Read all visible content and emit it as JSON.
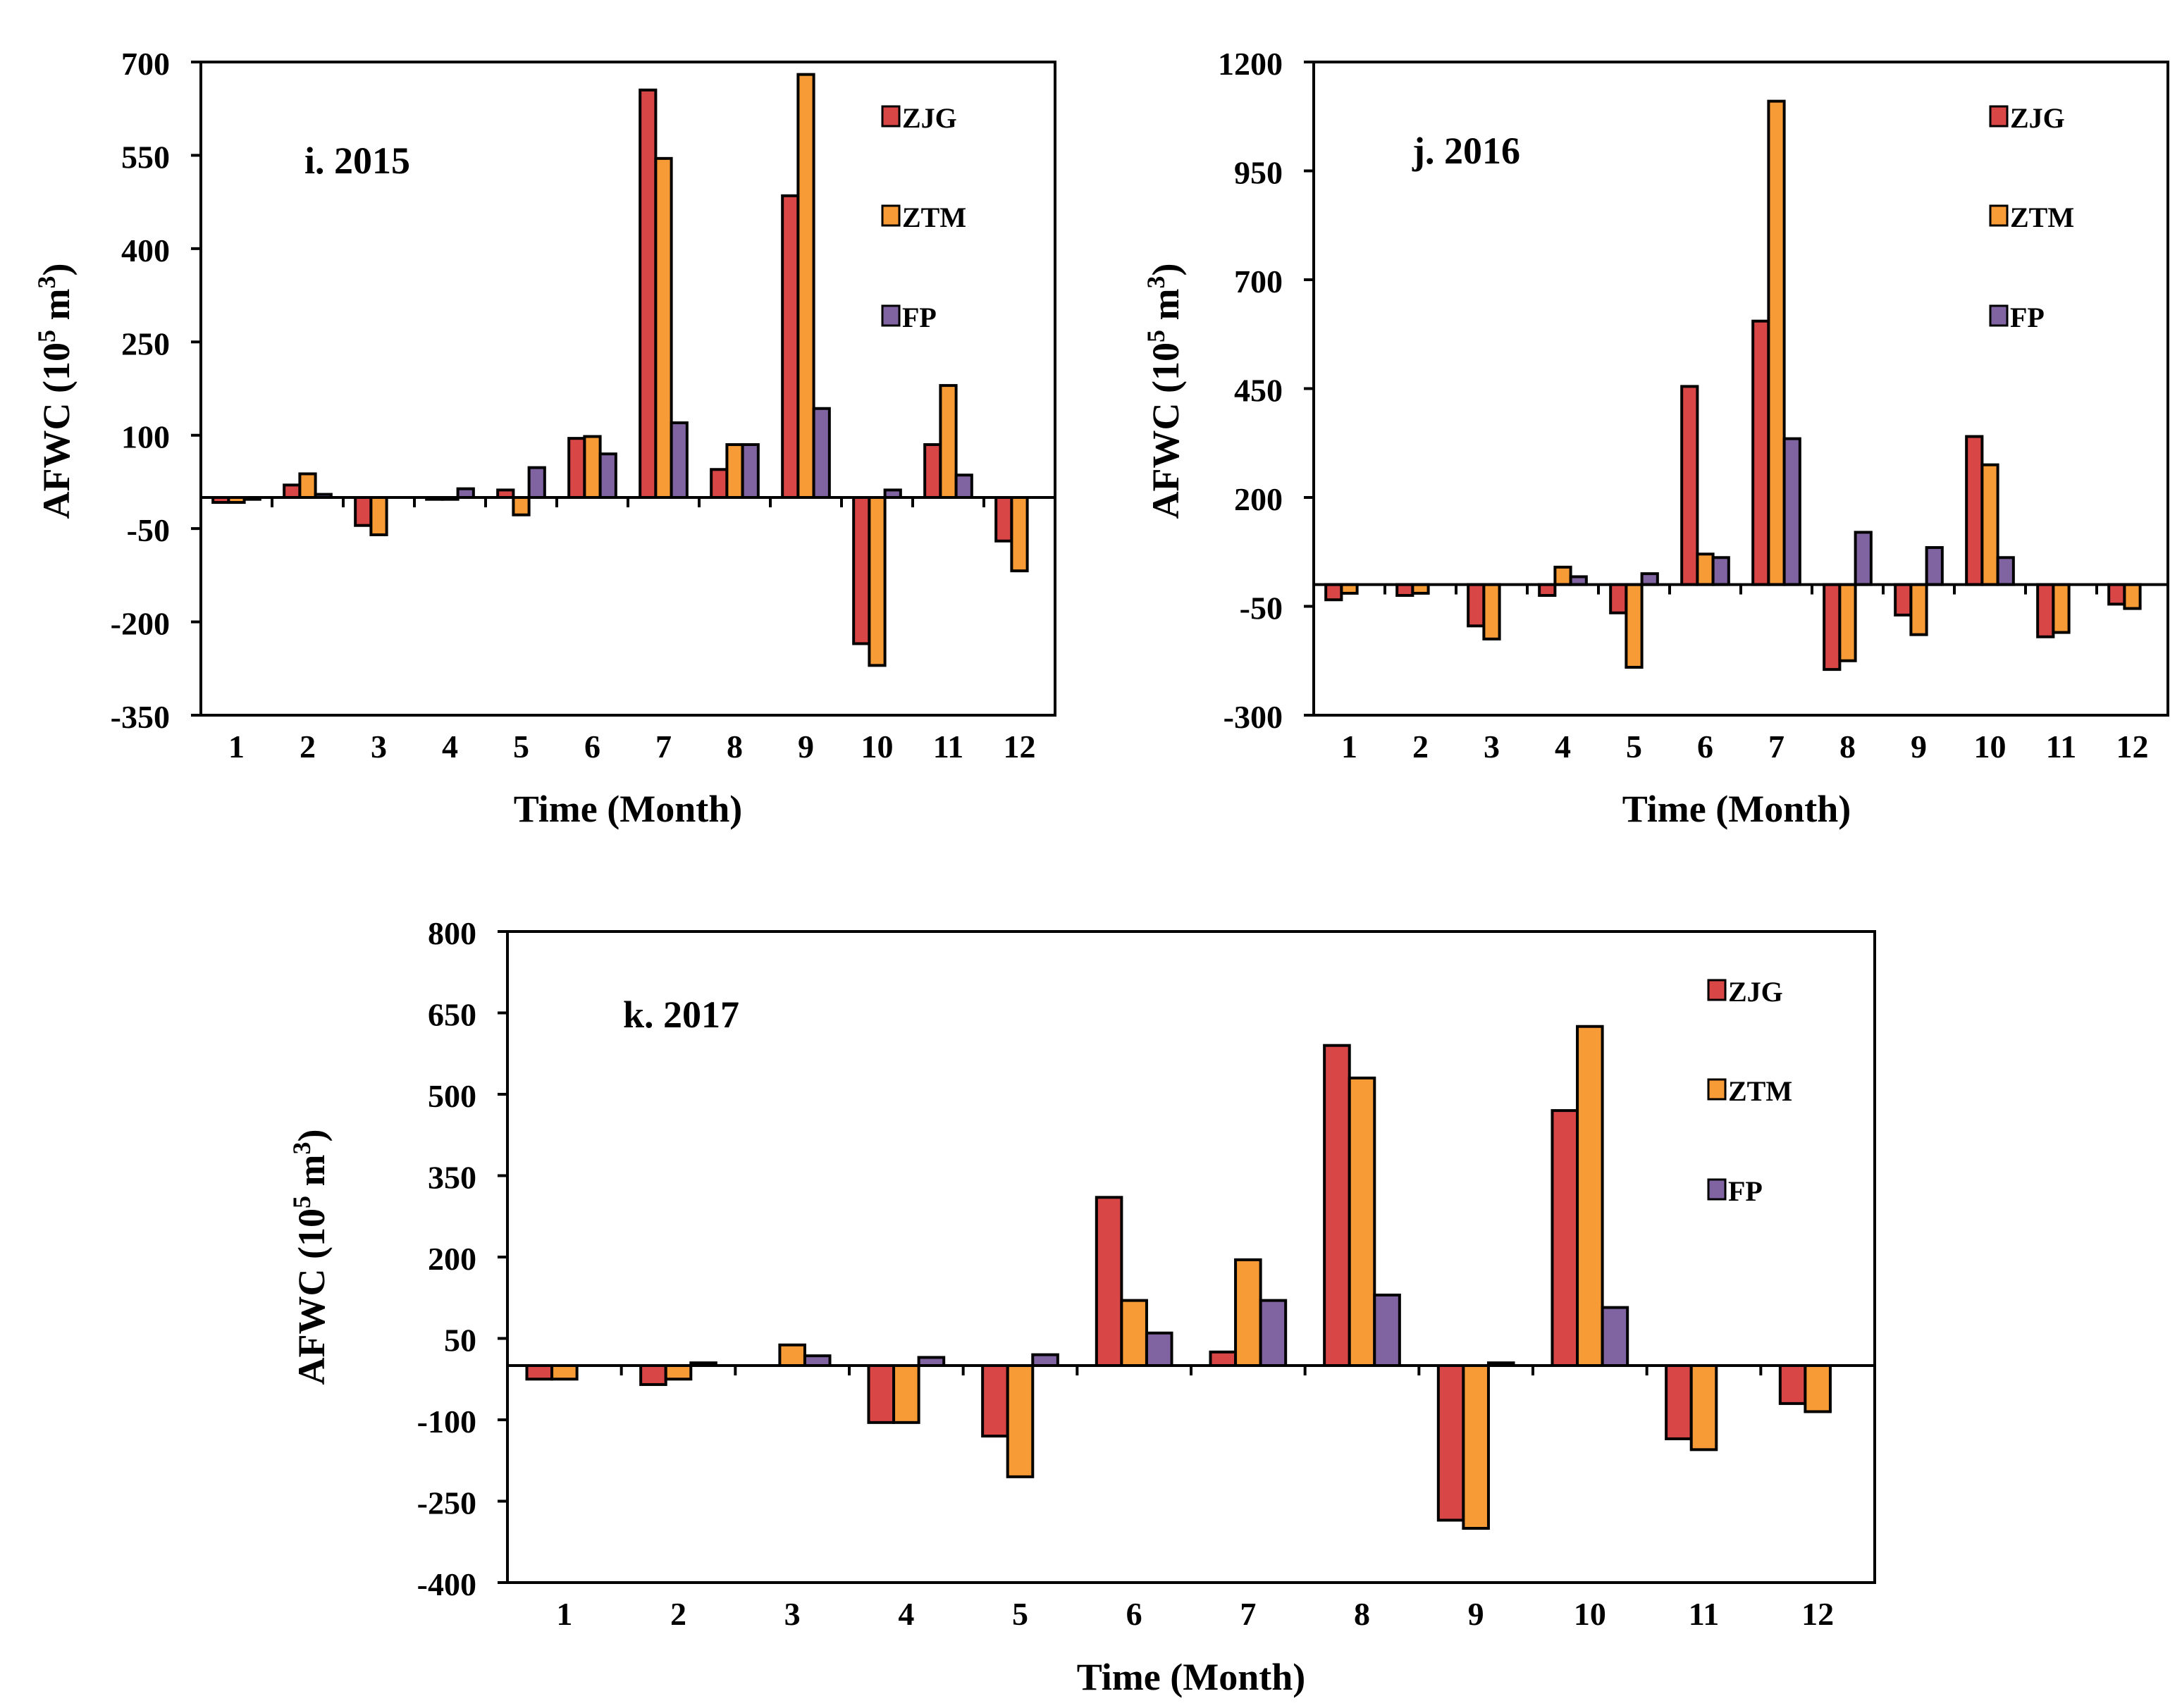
{
  "colors": {
    "ZJG": "#d94646",
    "ZTM": "#f79b36",
    "FP": "#8064a2",
    "axis": "#000000",
    "background": "#ffffff"
  },
  "chart_data": [
    {
      "type": "bar",
      "panel_label": "i. 2015",
      "xlabel": "Time (Month)",
      "ylabel_main": "AFWC (10",
      "ylabel_sup1": "5",
      "ylabel_mid": " m",
      "ylabel_sup2": "3",
      "ylabel_end": ")",
      "ylim": [
        -350,
        700
      ],
      "yticks": [
        "700",
        "550",
        "400",
        "250",
        "100",
        "-50",
        "-200",
        "-350"
      ],
      "ytick_values": [
        700,
        550,
        400,
        250,
        100,
        -50,
        -200,
        -350
      ],
      "categories": [
        "1",
        "2",
        "3",
        "4",
        "5",
        "6",
        "7",
        "8",
        "9",
        "10",
        "11",
        "12"
      ],
      "legend_position": "top-right",
      "series": [
        {
          "name": "ZJG",
          "values": [
            -8,
            20,
            -45,
            -3,
            12,
            95,
            655,
            45,
            485,
            -235,
            85,
            -70
          ]
        },
        {
          "name": "ZTM",
          "values": [
            -8,
            38,
            -60,
            -3,
            -28,
            98,
            545,
            85,
            680,
            -270,
            180,
            -118
          ]
        },
        {
          "name": "FP",
          "values": [
            -3,
            5,
            0,
            14,
            48,
            70,
            120,
            85,
            143,
            12,
            36,
            0
          ]
        }
      ]
    },
    {
      "type": "bar",
      "panel_label": "j. 2016",
      "xlabel": "Time (Month)",
      "ylabel_main": "AFWC (10",
      "ylabel_sup1": "5",
      "ylabel_mid": " m",
      "ylabel_sup2": "3",
      "ylabel_end": ")",
      "ylim": [
        -300,
        1200
      ],
      "yticks": [
        "1200",
        "950",
        "700",
        "450",
        "200",
        "-50",
        "-300"
      ],
      "ytick_values": [
        1200,
        950,
        700,
        450,
        200,
        -50,
        -300
      ],
      "categories": [
        "1",
        "2",
        "3",
        "4",
        "5",
        "6",
        "7",
        "8",
        "9",
        "10",
        "11",
        "12"
      ],
      "legend_position": "top-right",
      "series": [
        {
          "name": "ZJG",
          "values": [
            -35,
            -25,
            -95,
            -25,
            -65,
            455,
            605,
            -195,
            -70,
            340,
            -120,
            -45
          ]
        },
        {
          "name": "ZTM",
          "values": [
            -20,
            -20,
            -125,
            40,
            -190,
            70,
            1110,
            -175,
            -115,
            275,
            -110,
            -55
          ]
        },
        {
          "name": "FP",
          "values": [
            0,
            0,
            0,
            18,
            25,
            62,
            335,
            120,
            85,
            62,
            0,
            0
          ]
        }
      ]
    },
    {
      "type": "bar",
      "panel_label": "k. 2017",
      "xlabel": "Time (Month)",
      "ylabel_main": "AFWC (10",
      "ylabel_sup1": "5",
      "ylabel_mid": " m",
      "ylabel_sup2": "3",
      "ylabel_end": ")",
      "ylim": [
        -400,
        800
      ],
      "yticks": [
        "800",
        "650",
        "500",
        "350",
        "200",
        "50",
        "-100",
        "-250",
        "-400"
      ],
      "ytick_values": [
        800,
        650,
        500,
        350,
        200,
        50,
        -100,
        -250,
        -400
      ],
      "categories": [
        "1",
        "2",
        "3",
        "4",
        "5",
        "6",
        "7",
        "8",
        "9",
        "10",
        "11",
        "12"
      ],
      "legend_position": "top-right",
      "series": [
        {
          "name": "ZJG",
          "values": [
            -25,
            -35,
            0,
            -105,
            -130,
            310,
            25,
            590,
            -285,
            470,
            -135,
            -70
          ]
        },
        {
          "name": "ZTM",
          "values": [
            -25,
            -25,
            38,
            -105,
            -205,
            120,
            195,
            530,
            -300,
            625,
            -155,
            -85
          ]
        },
        {
          "name": "FP",
          "values": [
            0,
            5,
            18,
            15,
            20,
            60,
            120,
            130,
            5,
            107,
            0,
            0
          ]
        }
      ]
    }
  ]
}
